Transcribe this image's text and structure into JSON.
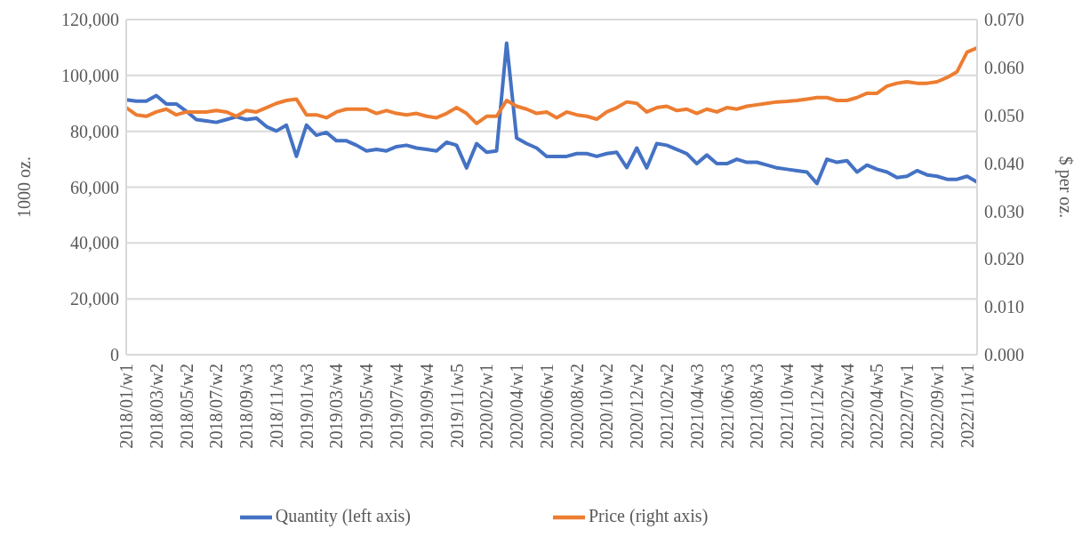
{
  "chart_data": {
    "type": "line",
    "ylabel": "1000 oz.",
    "y2label": "$ per oz.",
    "categories": [
      "2018/01/w1",
      null,
      null,
      "2018/03/w2",
      null,
      null,
      "2018/05/w2",
      null,
      null,
      "2018/07/w2",
      null,
      null,
      "2018/09/w3",
      null,
      null,
      "2018/11/w3",
      null,
      null,
      "2019/01/w3",
      null,
      null,
      "2019/03/w4",
      null,
      null,
      "2019/05/w4",
      null,
      null,
      "2019/07/w4",
      null,
      null,
      "2019/09/w4",
      null,
      null,
      "2019/11/w5",
      null,
      null,
      "2020/02/w1",
      null,
      null,
      "2020/04/w1",
      null,
      null,
      "2020/06/w1",
      null,
      null,
      "2020/08/w2",
      null,
      null,
      "2020/10/w2",
      null,
      null,
      "2020/12/w2",
      null,
      null,
      "2021/02/w2",
      null,
      null,
      "2021/04/w3",
      null,
      null,
      "2021/06/w3",
      null,
      null,
      "2021/08/w3",
      null,
      null,
      "2021/10/w4",
      null,
      null,
      "2021/12/w4",
      null,
      null,
      "2022/02/w4",
      null,
      null,
      "2022/04/w5",
      null,
      null,
      "2022/07/w1",
      null,
      null,
      "2022/09/w1",
      null,
      null,
      "2022/11/w1",
      null
    ],
    "series": [
      {
        "name": "Quantity (left axis)",
        "color": "#4472c4",
        "axis": "y",
        "values": [
          91300,
          90800,
          90800,
          92800,
          89800,
          89800,
          87200,
          84200,
          83700,
          83200,
          84200,
          85200,
          84200,
          84700,
          81700,
          80100,
          82200,
          71000,
          82200,
          78600,
          79600,
          76600,
          76600,
          75000,
          73000,
          73500,
          73000,
          74500,
          75000,
          74000,
          73500,
          73000,
          76100,
          75000,
          66900,
          75600,
          72500,
          73000,
          111600,
          77600,
          75600,
          74000,
          71000,
          71000,
          71000,
          72000,
          72000,
          71000,
          72000,
          72500,
          67000,
          74000,
          66900,
          75600,
          75000,
          73500,
          72000,
          68400,
          71500,
          68400,
          68400,
          70000,
          68900,
          68900,
          67900,
          66900,
          66400,
          65900,
          65400,
          61300,
          70000,
          68900,
          69500,
          65400,
          67900,
          66400,
          65400,
          63400,
          63900,
          65900,
          64400,
          63900,
          62800,
          62800,
          63900,
          61800
        ]
      },
      {
        "name": "Price (right axis)",
        "color": "#ed7d31",
        "axis": "y2",
        "values": [
          0.0516,
          0.0501,
          0.0498,
          0.0507,
          0.0513,
          0.0501,
          0.0507,
          0.0507,
          0.0507,
          0.051,
          0.0507,
          0.0498,
          0.051,
          0.0507,
          0.0516,
          0.0525,
          0.0531,
          0.0534,
          0.0501,
          0.0501,
          0.0495,
          0.0507,
          0.0513,
          0.0513,
          0.0513,
          0.0504,
          0.051,
          0.0504,
          0.0501,
          0.0504,
          0.0498,
          0.0495,
          0.0504,
          0.0516,
          0.0504,
          0.0483,
          0.0498,
          0.0498,
          0.0531,
          0.0519,
          0.0513,
          0.0504,
          0.0507,
          0.0495,
          0.0507,
          0.0501,
          0.0498,
          0.0492,
          0.0507,
          0.0516,
          0.0528,
          0.0525,
          0.0507,
          0.0516,
          0.0519,
          0.051,
          0.0513,
          0.0504,
          0.0513,
          0.0507,
          0.0516,
          0.0513,
          0.0519,
          0.0522,
          0.0525,
          0.0528,
          0.0529,
          0.0531,
          0.0534,
          0.0537,
          0.0537,
          0.0531,
          0.0531,
          0.0537,
          0.0546,
          0.0546,
          0.0561,
          0.0567,
          0.057,
          0.0567,
          0.0567,
          0.057,
          0.0579,
          0.0591,
          0.0632,
          0.0641
        ]
      }
    ],
    "ylim": [
      0,
      120000
    ],
    "yticks": [
      {
        "value": 0,
        "label": "0"
      },
      {
        "value": 20000,
        "label": "20,000"
      },
      {
        "value": 40000,
        "label": "40,000"
      },
      {
        "value": 60000,
        "label": "60,000"
      },
      {
        "value": 80000,
        "label": "80,000"
      },
      {
        "value": 100000,
        "label": "100,000"
      },
      {
        "value": 120000,
        "label": "120,000"
      }
    ],
    "y2lim": [
      0,
      0.07
    ],
    "y2ticks": [
      {
        "value": 0,
        "label": "0.000"
      },
      {
        "value": 0.01,
        "label": "0.010"
      },
      {
        "value": 0.02,
        "label": "0.020"
      },
      {
        "value": 0.03,
        "label": "0.030"
      },
      {
        "value": 0.04,
        "label": "0.040"
      },
      {
        "value": 0.05,
        "label": "0.050"
      },
      {
        "value": 0.06,
        "label": "0.060"
      },
      {
        "value": 0.07,
        "label": "0.070"
      }
    ],
    "grid": "y",
    "legend": "bottom",
    "marker": "none",
    "line_style": "solid"
  }
}
